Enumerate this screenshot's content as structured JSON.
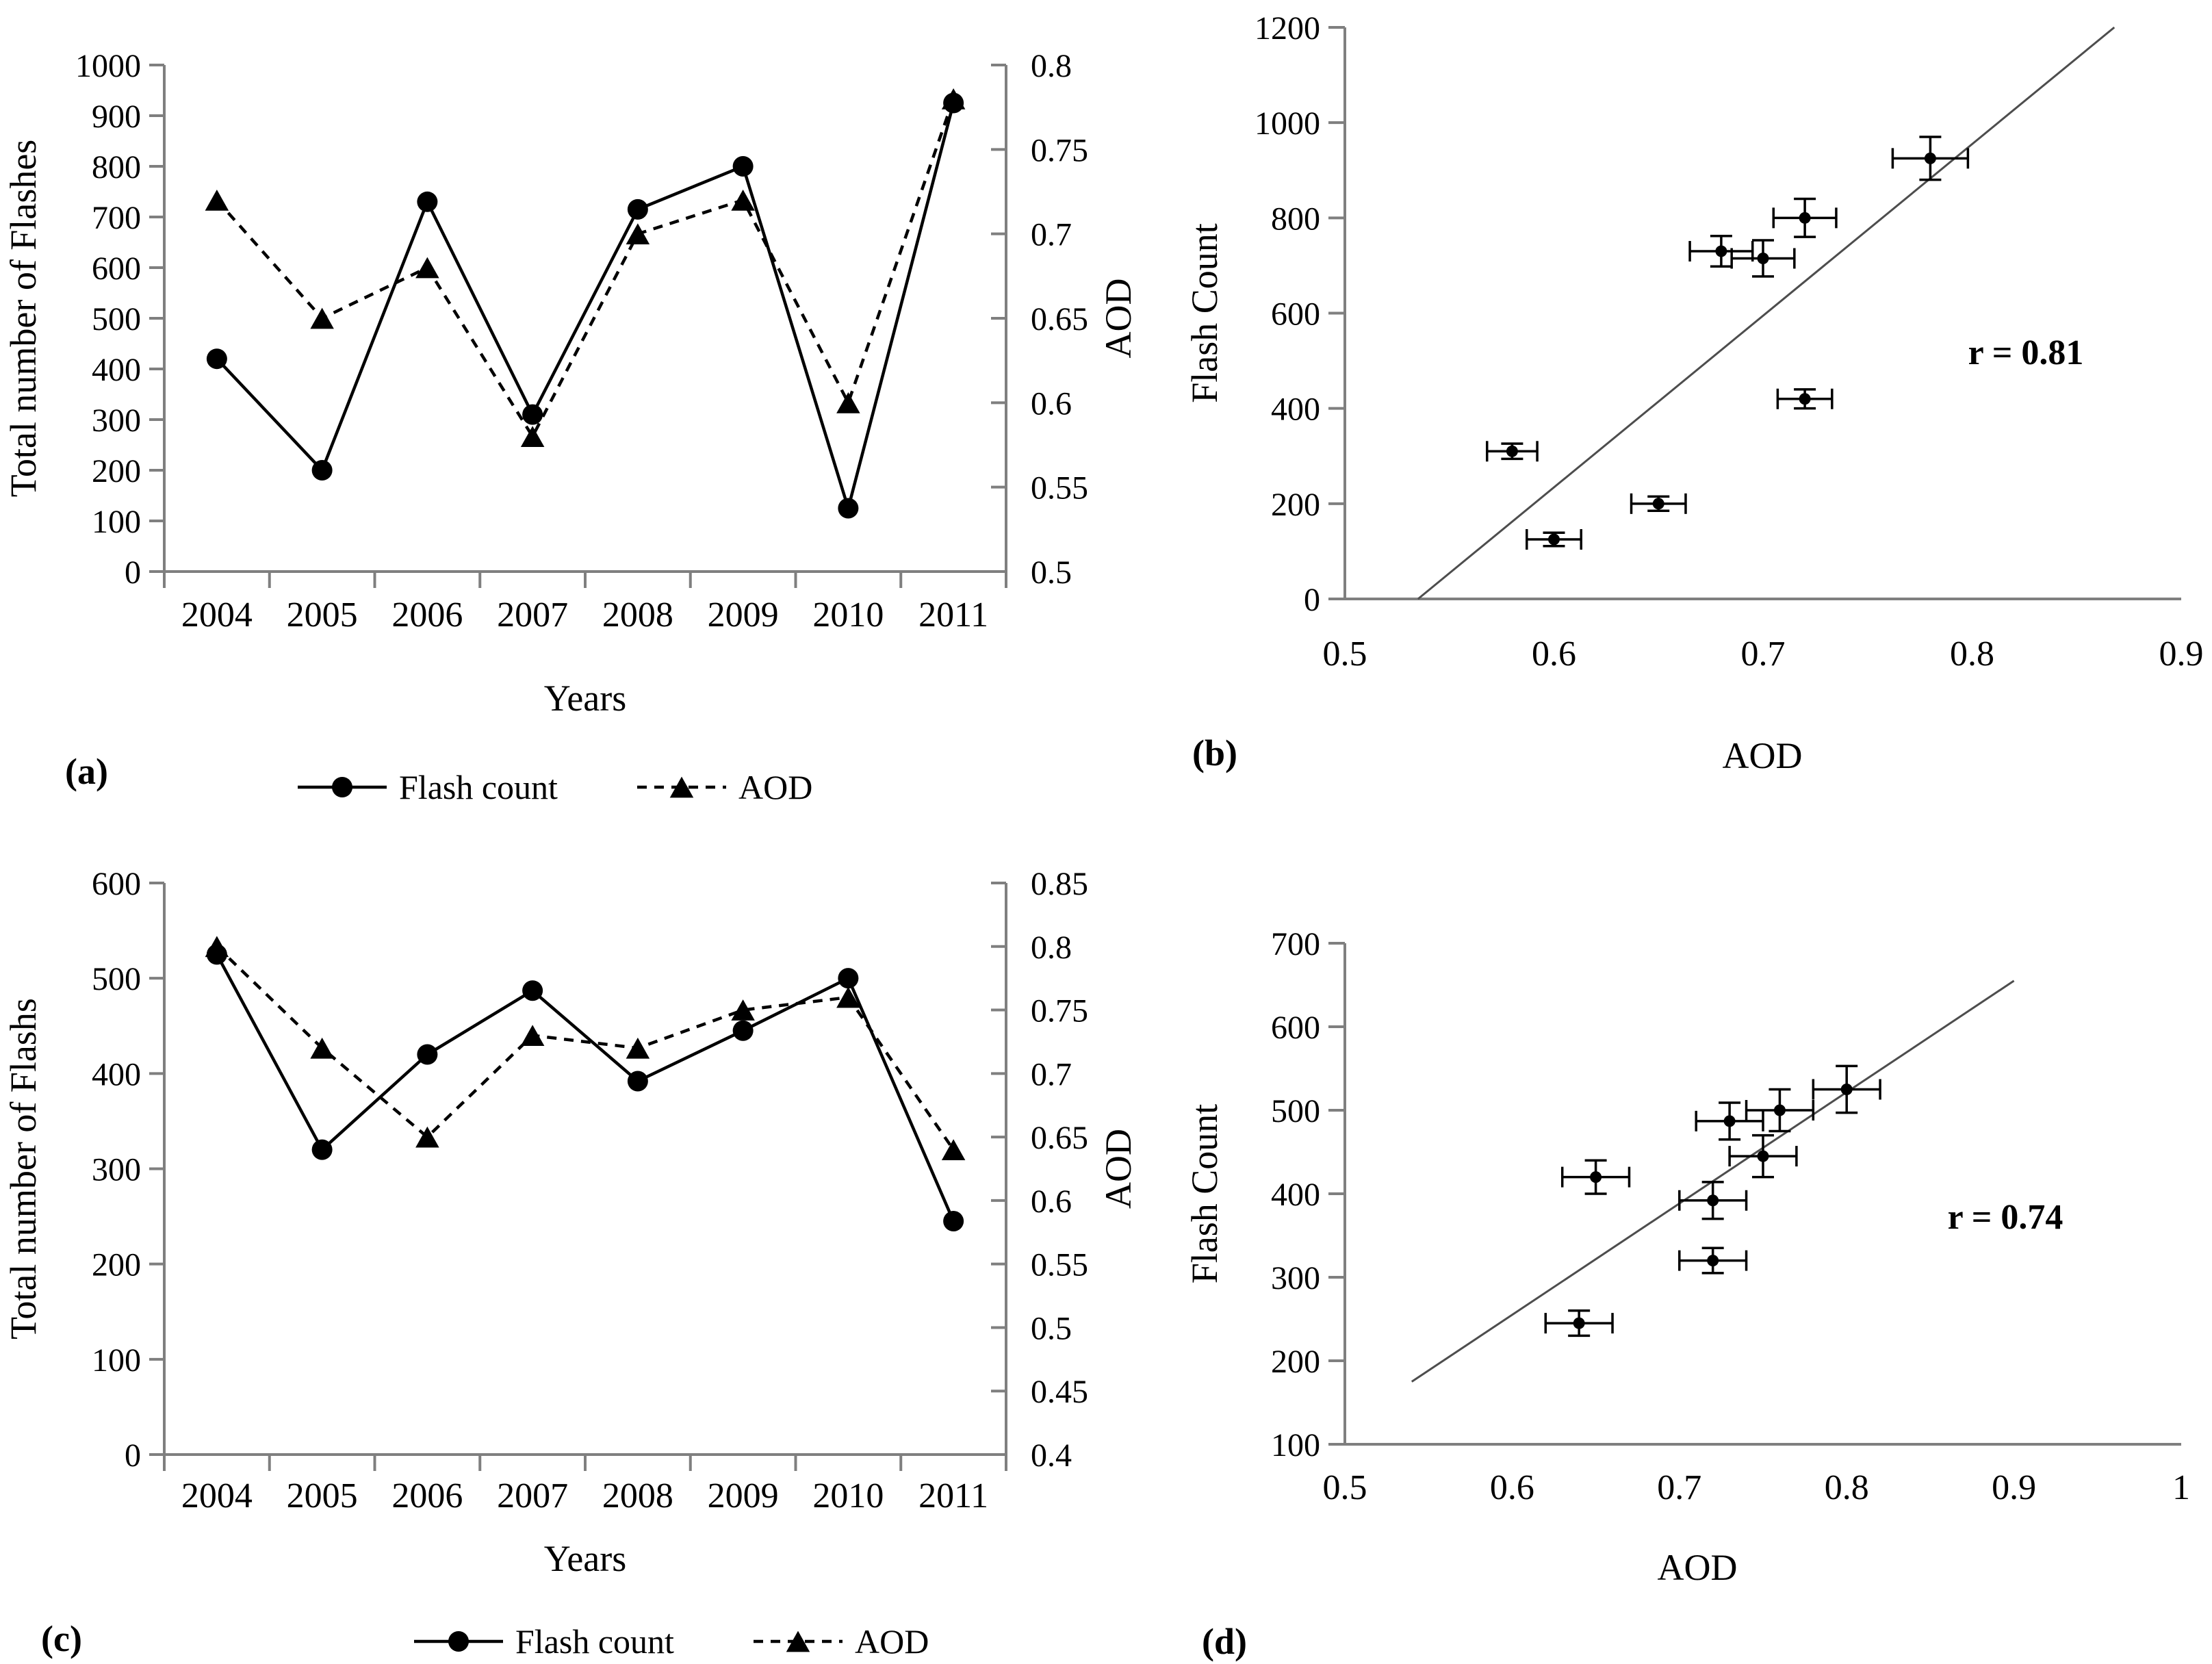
{
  "style": {
    "background": "#ffffff",
    "axis_color": "#7f7f7f",
    "data_color": "#000000",
    "text_color": "#000000",
    "trend_color": "#4d4d4d"
  },
  "chart_data": [
    {
      "id": "a",
      "panel_label": "(a)",
      "type": "line",
      "x_label": "Years",
      "y_left_label": "Total number of Flashes",
      "y_right_label": "AOD",
      "categories": [
        "2004",
        "2005",
        "2006",
        "2007",
        "2008",
        "2009",
        "2010",
        "2011"
      ],
      "y_left_range": [
        0,
        1000
      ],
      "y_right_range": [
        0.5,
        0.8
      ],
      "y_left_ticks": [
        "0",
        "100",
        "200",
        "300",
        "400",
        "500",
        "600",
        "700",
        "800",
        "900",
        "1000"
      ],
      "y_right_ticks": [
        "0.5",
        "0.55",
        "0.6",
        "0.65",
        "0.7",
        "0.75",
        "0.8"
      ],
      "series": [
        {
          "name": "Flash count",
          "axis": "left",
          "marker": "circle",
          "line_style": "solid",
          "values": [
            420,
            200,
            730,
            310,
            715,
            800,
            125,
            925
          ]
        },
        {
          "name": "AOD",
          "axis": "right",
          "marker": "triangle",
          "line_style": "dashed",
          "values": [
            0.72,
            0.65,
            0.68,
            0.58,
            0.7,
            0.72,
            0.6,
            0.78
          ]
        }
      ],
      "legend": [
        "Flash count",
        "AOD"
      ]
    },
    {
      "id": "b",
      "panel_label": "(b)",
      "type": "scatter",
      "x_label": "AOD",
      "y_label": "Flash Count",
      "x_range": [
        0.5,
        0.9
      ],
      "y_range": [
        0,
        1200
      ],
      "x_ticks": [
        "0.5",
        "0.6",
        "0.7",
        "0.8",
        "0.9"
      ],
      "y_ticks": [
        "0",
        "200",
        "400",
        "600",
        "800",
        "1000",
        "1200"
      ],
      "points": [
        {
          "x": 0.72,
          "y": 420,
          "xerr": 0.013,
          "yerr": 20
        },
        {
          "x": 0.65,
          "y": 200,
          "xerr": 0.013,
          "yerr": 15
        },
        {
          "x": 0.68,
          "y": 730,
          "xerr": 0.015,
          "yerr": 32
        },
        {
          "x": 0.58,
          "y": 310,
          "xerr": 0.012,
          "yerr": 16
        },
        {
          "x": 0.7,
          "y": 715,
          "xerr": 0.015,
          "yerr": 38
        },
        {
          "x": 0.72,
          "y": 800,
          "xerr": 0.015,
          "yerr": 40
        },
        {
          "x": 0.6,
          "y": 125,
          "xerr": 0.013,
          "yerr": 14
        },
        {
          "x": 0.78,
          "y": 925,
          "xerr": 0.018,
          "yerr": 45
        }
      ],
      "trendline": {
        "x1": 0.535,
        "y1": 0,
        "x2": 0.868,
        "y2": 1200
      },
      "r_label": "r = 0.81"
    },
    {
      "id": "c",
      "panel_label": "(c)",
      "type": "line",
      "x_label": "Years",
      "y_left_label": "Total number of Flashs",
      "y_right_label": "AOD",
      "categories": [
        "2004",
        "2005",
        "2006",
        "2007",
        "2008",
        "2009",
        "2010",
        "2011"
      ],
      "y_left_range": [
        0,
        600
      ],
      "y_right_range": [
        0.4,
        0.85
      ],
      "y_left_ticks": [
        "0",
        "100",
        "200",
        "300",
        "400",
        "500",
        "600"
      ],
      "y_right_ticks": [
        "0.4",
        "0.45",
        "0.5",
        "0.55",
        "0.6",
        "0.65",
        "0.7",
        "0.75",
        "0.8",
        "0.85"
      ],
      "series": [
        {
          "name": "Flash count",
          "axis": "left",
          "marker": "circle",
          "line_style": "solid",
          "values": [
            525,
            320,
            420,
            487,
            392,
            445,
            500,
            245
          ]
        },
        {
          "name": "AOD",
          "axis": "right",
          "marker": "triangle",
          "line_style": "dashed",
          "values": [
            0.8,
            0.72,
            0.65,
            0.73,
            0.72,
            0.75,
            0.76,
            0.64
          ]
        }
      ],
      "legend": [
        "Flash count",
        "AOD"
      ]
    },
    {
      "id": "d",
      "panel_label": "(d)",
      "type": "scatter",
      "x_label": "AOD",
      "y_label": "Flash Count",
      "x_range": [
        0.5,
        1.0
      ],
      "y_range": [
        100,
        700
      ],
      "x_ticks": [
        "0.5",
        "0.6",
        "0.7",
        "0.8",
        "0.9",
        "1"
      ],
      "y_ticks": [
        "100",
        "200",
        "300",
        "400",
        "500",
        "600",
        "700"
      ],
      "points": [
        {
          "x": 0.8,
          "y": 525,
          "xerr": 0.02,
          "yerr": 28
        },
        {
          "x": 0.72,
          "y": 320,
          "xerr": 0.02,
          "yerr": 15
        },
        {
          "x": 0.65,
          "y": 420,
          "xerr": 0.02,
          "yerr": 20
        },
        {
          "x": 0.73,
          "y": 487,
          "xerr": 0.02,
          "yerr": 22
        },
        {
          "x": 0.72,
          "y": 392,
          "xerr": 0.02,
          "yerr": 22
        },
        {
          "x": 0.75,
          "y": 445,
          "xerr": 0.02,
          "yerr": 25
        },
        {
          "x": 0.76,
          "y": 500,
          "xerr": 0.02,
          "yerr": 25
        },
        {
          "x": 0.64,
          "y": 245,
          "xerr": 0.02,
          "yerr": 15
        }
      ],
      "trendline": {
        "x1": 0.54,
        "y1": 175,
        "x2": 0.9,
        "y2": 655
      },
      "r_label": "r = 0.74"
    }
  ]
}
